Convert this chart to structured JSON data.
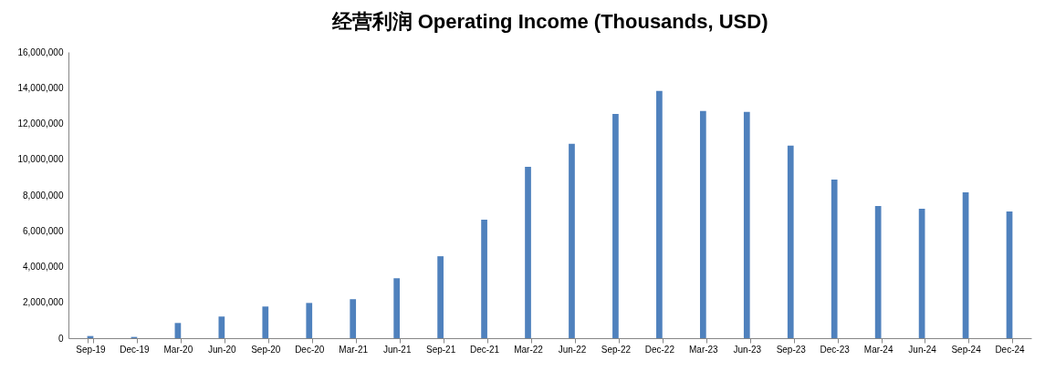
{
  "chart_data": {
    "type": "bar",
    "title": "经营利润 Operating Income (Thousands, USD)",
    "categories": [
      "Sep-19",
      "Dec-19",
      "Mar-20",
      "Jun-20",
      "Sep-20",
      "Dec-20",
      "Mar-21",
      "Jun-21",
      "Sep-21",
      "Dec-21",
      "Mar-22",
      "Jun-22",
      "Sep-22",
      "Dec-22",
      "Mar-23",
      "Jun-23",
      "Sep-23",
      "Dec-23",
      "Mar-24",
      "Jun-24",
      "Sep-24",
      "Dec-24"
    ],
    "values": [
      120000,
      70000,
      850000,
      1210000,
      1770000,
      1970000,
      2180000,
      3350000,
      4580000,
      6620000,
      9580000,
      10860000,
      12540000,
      13820000,
      12700000,
      12650000,
      10760000,
      8870000,
      7390000,
      7230000,
      8150000,
      7080000
    ],
    "color": "#4f81bd",
    "ylim": [
      0,
      16000000
    ],
    "yticks": [
      0,
      {
        "value": 2000000,
        "label": "2,000,000"
      },
      {
        "value": 4000000,
        "label": "4,000,000"
      },
      {
        "value": 6000000,
        "label": "6,000,000"
      },
      {
        "value": 8000000,
        "label": "8,000,000"
      },
      {
        "value": 10000000,
        "label": "10,000,000"
      },
      {
        "value": 12000000,
        "label": "12,000,000"
      },
      {
        "value": 14000000,
        "label": "14,000,000"
      },
      {
        "value": 16000000,
        "label": "16,000,000"
      }
    ],
    "grid": false
  }
}
